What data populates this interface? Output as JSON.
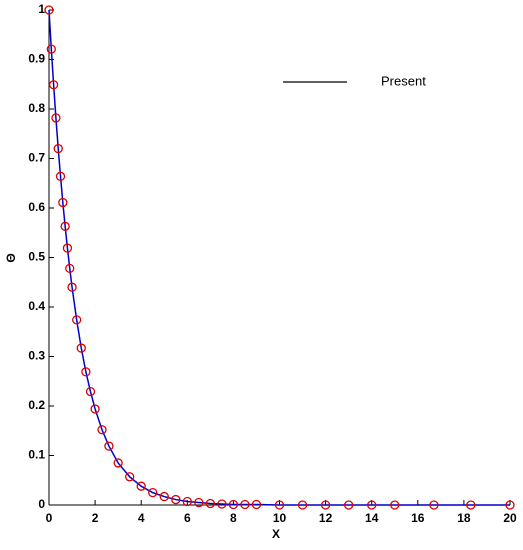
{
  "chart_data": {
    "type": "line",
    "x_label": "X",
    "y_label": "Θ",
    "x": [
      0,
      0.1,
      0.2,
      0.3,
      0.4,
      0.5,
      0.6,
      0.7,
      0.8,
      0.9,
      1.0,
      1.2,
      1.4,
      1.6,
      1.8,
      2.0,
      2.3,
      2.6,
      3.0,
      3.5,
      4.0,
      4.5,
      5,
      5.5,
      6,
      6.5,
      7,
      7.5,
      8,
      8.5,
      9,
      10,
      11,
      12,
      13,
      14,
      15,
      16.7,
      18.3,
      20
    ],
    "series": [
      {
        "name": "Present",
        "color": "#0000cc",
        "legend_color": "#000000",
        "style": "line",
        "values": [
          1,
          0.921,
          0.849,
          0.782,
          0.72,
          0.664,
          0.611,
          0.563,
          0.519,
          0.478,
          0.44,
          0.374,
          0.317,
          0.269,
          0.229,
          0.194,
          0.152,
          0.119,
          0.085,
          0.057,
          0.038,
          0.025,
          0.017,
          0.011,
          0.007,
          0.005,
          0.003,
          0.002,
          0.001,
          0.001,
          0.001,
          0,
          0,
          0,
          0,
          0,
          0,
          0,
          0,
          0
        ]
      },
      {
        "color": "#dd0000",
        "style": "markers",
        "values": [
          1,
          0.921,
          0.849,
          0.782,
          0.72,
          0.664,
          0.611,
          0.563,
          0.519,
          0.478,
          0.44,
          0.374,
          0.317,
          0.269,
          0.229,
          0.194,
          0.152,
          0.119,
          0.085,
          0.057,
          0.038,
          0.025,
          0.017,
          0.011,
          0.007,
          0.005,
          0.003,
          0.002,
          0.001,
          0.001,
          0.001,
          0,
          0,
          0,
          0,
          0,
          0,
          0,
          0,
          0
        ]
      }
    ],
    "xlim": [
      0,
      20
    ],
    "xticks": [
      0,
      2,
      4,
      6,
      8,
      10,
      12,
      14,
      16,
      18,
      20
    ],
    "ylim": [
      0,
      1
    ],
    "yticks": [
      0,
      0.1,
      0.2,
      0.3,
      0.4,
      0.5,
      0.6,
      0.7,
      0.8,
      0.9,
      1
    ],
    "grid": false,
    "legend": "upper right"
  }
}
